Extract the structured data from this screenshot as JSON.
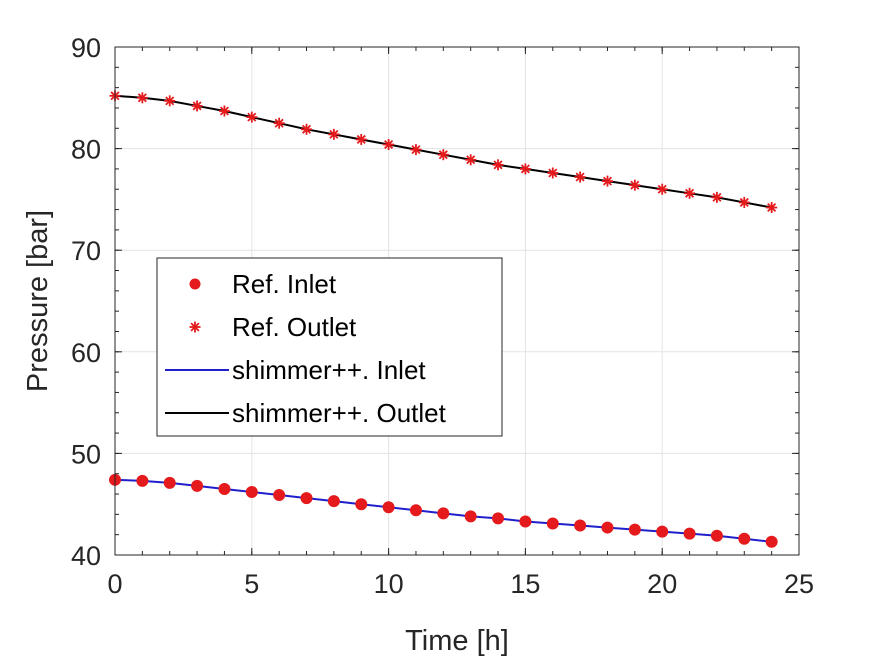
{
  "chart_data": {
    "type": "line",
    "xlabel": "Time [h]",
    "ylabel": "Pressure [bar]",
    "xlim": [
      0,
      25
    ],
    "ylim": [
      40,
      90
    ],
    "xticks": [
      0,
      5,
      10,
      15,
      20,
      25
    ],
    "yticks": [
      40,
      50,
      60,
      70,
      80,
      90
    ],
    "grid": true,
    "legend_position": "center-left",
    "series": [
      {
        "name": "Ref. Inlet",
        "kind": "marker",
        "marker": "filled-circle",
        "color": "#e41a1c",
        "x": [
          0,
          1,
          2,
          3,
          4,
          5,
          6,
          7,
          8,
          9,
          10,
          11,
          12,
          13,
          14,
          15,
          16,
          17,
          18,
          19,
          20,
          21,
          22,
          23,
          24
        ],
        "y": [
          47.4,
          47.3,
          47.1,
          46.8,
          46.5,
          46.2,
          45.9,
          45.6,
          45.3,
          45.0,
          44.7,
          44.4,
          44.1,
          43.8,
          43.6,
          43.3,
          43.1,
          42.9,
          42.7,
          42.5,
          42.3,
          42.1,
          41.9,
          41.6,
          41.3
        ]
      },
      {
        "name": "Ref. Outlet",
        "kind": "marker",
        "marker": "asterisk",
        "color": "#e41a1c",
        "x": [
          0,
          1,
          2,
          3,
          4,
          5,
          6,
          7,
          8,
          9,
          10,
          11,
          12,
          13,
          14,
          15,
          16,
          17,
          18,
          19,
          20,
          21,
          22,
          23,
          24
        ],
        "y": [
          85.2,
          85.0,
          84.7,
          84.2,
          83.7,
          83.1,
          82.5,
          81.9,
          81.4,
          80.9,
          80.4,
          79.9,
          79.4,
          78.9,
          78.4,
          78.0,
          77.6,
          77.2,
          76.8,
          76.4,
          76.0,
          75.6,
          75.2,
          74.7,
          74.2
        ]
      },
      {
        "name": "shimmer++. Inlet",
        "kind": "line",
        "color": "#1f1fcc",
        "x": [
          0,
          1,
          2,
          3,
          4,
          5,
          6,
          7,
          8,
          9,
          10,
          11,
          12,
          13,
          14,
          15,
          16,
          17,
          18,
          19,
          20,
          21,
          22,
          23,
          24
        ],
        "y": [
          47.4,
          47.3,
          47.1,
          46.8,
          46.5,
          46.2,
          45.9,
          45.6,
          45.3,
          45.0,
          44.7,
          44.4,
          44.1,
          43.8,
          43.6,
          43.3,
          43.1,
          42.9,
          42.7,
          42.5,
          42.3,
          42.1,
          41.9,
          41.6,
          41.3
        ]
      },
      {
        "name": "shimmer++. Outlet",
        "kind": "line",
        "color": "#000000",
        "x": [
          0,
          1,
          2,
          3,
          4,
          5,
          6,
          7,
          8,
          9,
          10,
          11,
          12,
          13,
          14,
          15,
          16,
          17,
          18,
          19,
          20,
          21,
          22,
          23,
          24
        ],
        "y": [
          85.2,
          85.0,
          84.7,
          84.2,
          83.7,
          83.1,
          82.5,
          81.9,
          81.4,
          80.9,
          80.4,
          79.9,
          79.4,
          78.9,
          78.4,
          78.0,
          77.6,
          77.2,
          76.8,
          76.4,
          76.0,
          75.6,
          75.2,
          74.7,
          74.2
        ]
      }
    ]
  }
}
